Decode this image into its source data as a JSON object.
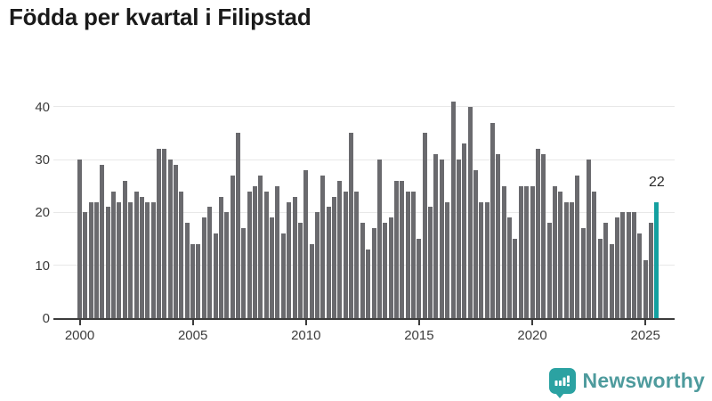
{
  "title": "Födda per kvartal i Filipstad",
  "chart_data": {
    "type": "bar",
    "title": "Födda per kvartal i Filipstad",
    "xlabel": "",
    "ylabel": "",
    "ylim": [
      0,
      44
    ],
    "yticks": [
      0,
      10,
      20,
      30,
      40
    ],
    "grid": true,
    "x_tick_labels": [
      "2000",
      "2005",
      "2010",
      "2015",
      "2020",
      "2025"
    ],
    "categories": [
      "2000 Q1",
      "2000 Q2",
      "2000 Q3",
      "2000 Q4",
      "2001 Q1",
      "2001 Q2",
      "2001 Q3",
      "2001 Q4",
      "2002 Q1",
      "2002 Q2",
      "2002 Q3",
      "2002 Q4",
      "2003 Q1",
      "2003 Q2",
      "2003 Q3",
      "2003 Q4",
      "2004 Q1",
      "2004 Q2",
      "2004 Q3",
      "2004 Q4",
      "2005 Q1",
      "2005 Q2",
      "2005 Q3",
      "2005 Q4",
      "2006 Q1",
      "2006 Q2",
      "2006 Q3",
      "2006 Q4",
      "2007 Q1",
      "2007 Q2",
      "2007 Q3",
      "2007 Q4",
      "2008 Q1",
      "2008 Q2",
      "2008 Q3",
      "2008 Q4",
      "2009 Q1",
      "2009 Q2",
      "2009 Q3",
      "2009 Q4",
      "2010 Q1",
      "2010 Q2",
      "2010 Q3",
      "2010 Q4",
      "2011 Q1",
      "2011 Q2",
      "2011 Q3",
      "2011 Q4",
      "2012 Q1",
      "2012 Q2",
      "2012 Q3",
      "2012 Q4",
      "2013 Q1",
      "2013 Q2",
      "2013 Q3",
      "2013 Q4",
      "2014 Q1",
      "2014 Q2",
      "2014 Q3",
      "2014 Q4",
      "2015 Q1",
      "2015 Q2",
      "2015 Q3",
      "2015 Q4",
      "2016 Q1",
      "2016 Q2",
      "2016 Q3",
      "2016 Q4",
      "2017 Q1",
      "2017 Q2",
      "2017 Q3",
      "2017 Q4",
      "2018 Q1",
      "2018 Q2",
      "2018 Q3",
      "2018 Q4",
      "2019 Q1",
      "2019 Q2",
      "2019 Q3",
      "2019 Q4",
      "2020 Q1",
      "2020 Q2",
      "2020 Q3",
      "2020 Q4",
      "2021 Q1",
      "2021 Q2",
      "2021 Q3",
      "2021 Q4",
      "2022 Q1",
      "2022 Q2",
      "2022 Q3",
      "2022 Q4",
      "2023 Q1",
      "2023 Q2",
      "2023 Q3",
      "2023 Q4",
      "2024 Q1",
      "2024 Q2",
      "2024 Q3",
      "2024 Q4",
      "2025 Q1",
      "2025 Q2",
      "2025 Q3"
    ],
    "values": [
      30,
      20,
      22,
      22,
      29,
      21,
      24,
      22,
      26,
      22,
      24,
      23,
      22,
      22,
      32,
      32,
      30,
      29,
      24,
      18,
      14,
      14,
      19,
      21,
      16,
      23,
      20,
      27,
      35,
      17,
      24,
      25,
      27,
      24,
      19,
      25,
      16,
      22,
      23,
      18,
      28,
      14,
      20,
      27,
      21,
      23,
      26,
      24,
      35,
      24,
      18,
      13,
      17,
      30,
      18,
      19,
      26,
      26,
      24,
      24,
      15,
      35,
      21,
      31,
      30,
      22,
      41,
      30,
      33,
      40,
      28,
      22,
      22,
      37,
      31,
      25,
      19,
      15,
      25,
      25,
      25,
      32,
      31,
      18,
      25,
      24,
      22,
      22,
      27,
      17,
      30,
      24,
      15,
      18,
      14,
      19,
      20,
      20,
      20,
      16,
      11,
      18,
      22
    ],
    "highlight": {
      "category": "2025 Q3",
      "index": 102,
      "value": 22,
      "data_label": "22"
    },
    "legend_position": "none",
    "colors": {
      "bar": "#6a6a6e",
      "highlight_bar": "#14a0a0",
      "gridline": "#e8e8e8",
      "axis": "#3c3c3c"
    }
  },
  "annotation": {
    "label": "22"
  },
  "y_axis": {
    "tick_labels": [
      "0",
      "10",
      "20",
      "30",
      "40"
    ]
  },
  "x_axis": {
    "tick_labels": [
      "2000",
      "2005",
      "2010",
      "2015",
      "2020",
      "2025"
    ]
  },
  "footer": {
    "brand": "Newsworthy",
    "logo_icon": "bar-chart-exclamation-badge"
  }
}
